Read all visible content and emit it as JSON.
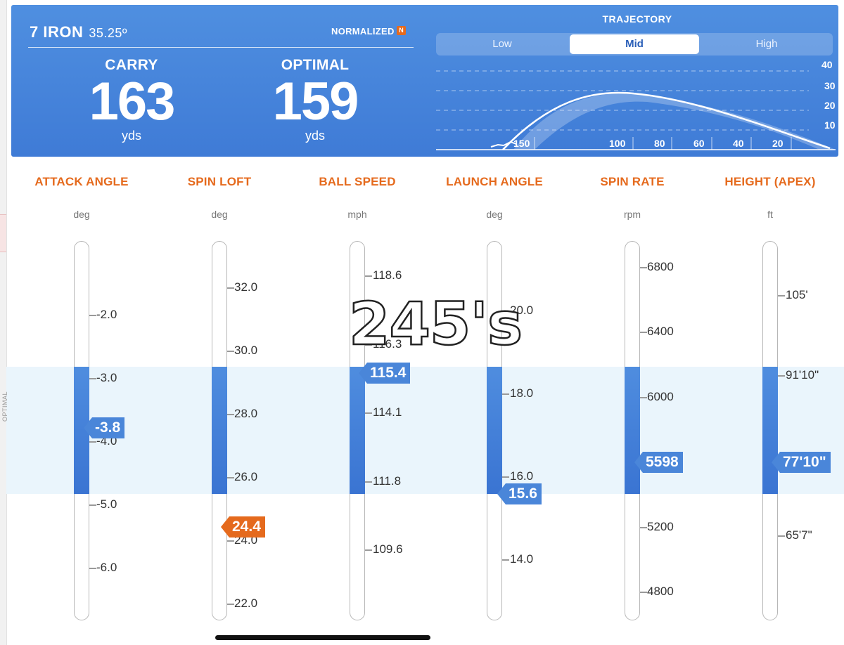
{
  "header": {
    "club": "7 IRON",
    "loft": "35.25º",
    "normalized_label": "NORMALIZED",
    "normalized_badge": "N",
    "carry": {
      "label": "CARRY",
      "value": "163",
      "unit": "yds"
    },
    "optimal": {
      "label": "OPTIMAL",
      "value": "159",
      "unit": "yds"
    }
  },
  "trajectory": {
    "title": "TRAJECTORY",
    "options": [
      "Low",
      "Mid",
      "High"
    ],
    "selected": "Mid",
    "y_labels": [
      "40",
      "30",
      "20",
      "10"
    ],
    "x_labels": [
      "150",
      "100",
      "80",
      "60",
      "40",
      "20"
    ]
  },
  "optimal_band_label": "OPTIMAL",
  "overlay_text": "245's",
  "columns": [
    {
      "key": "attack",
      "title": "ATTACK ANGLE",
      "unit": "deg",
      "ticks": [
        "-2.0",
        "-3.0",
        "-4.0",
        "-5.0",
        "-6.0"
      ],
      "value": "-3.8",
      "marker_color": "#4a86d9"
    },
    {
      "key": "spinloft",
      "title": "SPIN LOFT",
      "unit": "deg",
      "ticks": [
        "32.0",
        "30.0",
        "28.0",
        "26.0",
        "24.0",
        "22.0"
      ],
      "value": "24.4",
      "marker_color": "#e56a1d"
    },
    {
      "key": "ballspeed",
      "title": "BALL SPEED",
      "unit": "mph",
      "ticks": [
        "118.6",
        "116.3",
        "114.1",
        "111.8",
        "109.6"
      ],
      "value": "115.4",
      "marker_color": "#4a86d9"
    },
    {
      "key": "launch",
      "title": "LAUNCH ANGLE",
      "unit": "deg",
      "ticks": [
        "20.0",
        "18.0",
        "16.0",
        "14.0"
      ],
      "value": "15.6",
      "marker_color": "#4a86d9"
    },
    {
      "key": "spinrate",
      "title": "SPIN RATE",
      "unit": "rpm",
      "ticks": [
        "6800",
        "6400",
        "6000",
        "5200",
        "4800"
      ],
      "value": "5598",
      "marker_color": "#4a86d9"
    },
    {
      "key": "height",
      "title": "HEIGHT (APEX)",
      "unit": "ft",
      "ticks": [
        "105'",
        "91'10\"",
        "65'7\""
      ],
      "value": "77'10\"",
      "marker_color": "#4a86d9"
    }
  ]
}
